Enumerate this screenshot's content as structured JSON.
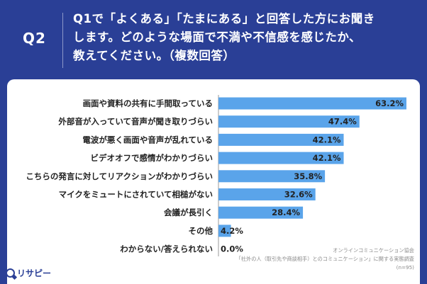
{
  "header": {
    "q_label": "Q2",
    "question_lines": [
      "Q1で「よくある」「たまにある」と回答した方にお聞き",
      "します。どのような場面で不満や不信感を感じたか、",
      "教えてください。（複数回答）"
    ]
  },
  "chart_data": {
    "type": "bar",
    "orientation": "horizontal",
    "categories": [
      "画面や資料の共有に手間取っている",
      "外部音が入っていて音声が聞き取りづらい",
      "電波が悪く画面や音声が乱れている",
      "ビデオオフで感情がわかりづらい",
      "こちらの発言に対してリアクションがわかりづらい",
      "マイクをミュートにされていて相槌がない",
      "会議が長引く",
      "その他",
      "わからない/答えられない"
    ],
    "values": [
      63.2,
      47.4,
      42.1,
      42.1,
      35.8,
      32.6,
      28.4,
      4.2,
      0.0
    ],
    "value_labels": [
      "63.2%",
      "47.4%",
      "42.1%",
      "42.1%",
      "35.8%",
      "32.6%",
      "28.4%",
      "4.2%",
      "0.0%"
    ],
    "unit": "%",
    "xlim": [
      0,
      70
    ],
    "bar_color": "#5aa4ea"
  },
  "source": {
    "org": "オンラインコミュニケーション協会",
    "survey": "「社外の人（取引先や商談相手）とのコミュニケーション」に関する実態調査",
    "n": "(n=95)"
  },
  "logo": {
    "text": "リサピー",
    "icon": "magnifier-icon"
  },
  "colors": {
    "background": "#2a3f96",
    "panel": "#ffffff",
    "bar": "#5aa4ea"
  }
}
